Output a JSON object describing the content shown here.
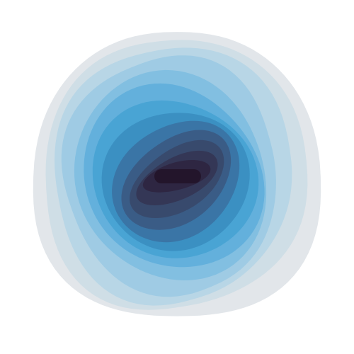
{
  "artwork": {
    "subject": "nested-contour-rings",
    "background": "#ffffff",
    "palette": [
      "#e2e6ea",
      "#cfdee6",
      "#b8d6e6",
      "#9fcbe4",
      "#82bfe1",
      "#63b0dc",
      "#49a4d4",
      "#3b90c2",
      "#3a75a6",
      "#3a5c86",
      "#384a6d",
      "#343756",
      "#2e2642",
      "#23152b"
    ]
  }
}
